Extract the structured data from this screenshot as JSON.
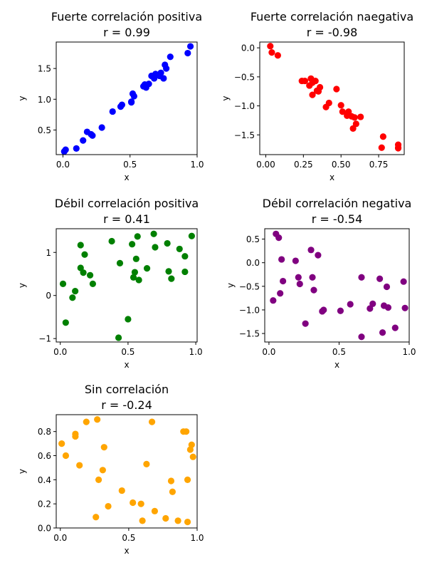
{
  "chart_data": [
    {
      "type": "scatter",
      "title": "Fuerte correlación positiva",
      "subtitle": "r = 0.99",
      "xlabel": "x",
      "ylabel": "y",
      "xlim": [
        -0.05,
        1.0
      ],
      "ylim": [
        0.1,
        1.93
      ],
      "xticks": [
        0.0,
        0.5,
        1.0
      ],
      "xtick_labels": [
        "0.0",
        "0.5",
        "1.0"
      ],
      "yticks": [
        0.5,
        1.0,
        1.5
      ],
      "ytick_labels": [
        "0.5",
        "1.0",
        "1.5"
      ],
      "color": "#0000ff",
      "series": [
        {
          "x": [
            0.01,
            0.02,
            0.1,
            0.15,
            0.18,
            0.21,
            0.22,
            0.29,
            0.37,
            0.43,
            0.44,
            0.51,
            0.51,
            0.52,
            0.53,
            0.6,
            0.61,
            0.62,
            0.64,
            0.66,
            0.68,
            0.69,
            0.72,
            0.73,
            0.75,
            0.76,
            0.77,
            0.8,
            0.93,
            0.95
          ],
          "y": [
            0.15,
            0.18,
            0.2,
            0.33,
            0.47,
            0.43,
            0.41,
            0.54,
            0.8,
            0.88,
            0.91,
            0.96,
            0.95,
            1.09,
            1.05,
            1.21,
            1.24,
            1.19,
            1.25,
            1.38,
            1.34,
            1.41,
            1.38,
            1.43,
            1.34,
            1.56,
            1.5,
            1.69,
            1.75,
            1.86
          ]
        }
      ]
    },
    {
      "type": "scatter",
      "title": "Fuerte correlación naegativa",
      "subtitle": "r = -0.98",
      "xlabel": "x",
      "ylabel": "y",
      "xlim": [
        -0.04,
        0.92
      ],
      "ylim": [
        -1.84,
        0.1
      ],
      "xticks": [
        0.0,
        0.25,
        0.5,
        0.75
      ],
      "xtick_labels": [
        "0.00",
        "0.25",
        "0.50",
        "0.75"
      ],
      "yticks": [
        0.0,
        -0.5,
        -1.0,
        -1.5
      ],
      "ytick_labels": [
        "0.0",
        "−0.5",
        "−1.0",
        "−1.5"
      ],
      "color": "#ff0000",
      "series": [
        {
          "x": [
            0.03,
            0.04,
            0.08,
            0.24,
            0.26,
            0.29,
            0.3,
            0.31,
            0.31,
            0.33,
            0.34,
            0.35,
            0.36,
            0.4,
            0.42,
            0.47,
            0.5,
            0.51,
            0.54,
            0.55,
            0.57,
            0.58,
            0.59,
            0.6,
            0.63,
            0.77,
            0.78,
            0.88,
            0.88,
            0.88
          ],
          "y": [
            0.03,
            -0.08,
            -0.13,
            -0.57,
            -0.57,
            -0.65,
            -0.53,
            -0.6,
            -0.81,
            -0.57,
            -0.74,
            -0.75,
            -0.68,
            -1.02,
            -0.95,
            -0.71,
            -0.99,
            -1.1,
            -1.17,
            -1.1,
            -1.18,
            -1.39,
            -1.2,
            -1.31,
            -1.19,
            -1.72,
            -1.53,
            -1.67,
            -1.72,
            -1.73
          ]
        }
      ]
    },
    {
      "type": "scatter",
      "title": "Débil correlación positiva",
      "subtitle": "r = 0.41",
      "xlabel": "x",
      "ylabel": "y",
      "xlim": [
        -0.03,
        1.01
      ],
      "ylim": [
        -1.08,
        1.55
      ],
      "xticks": [
        0.0,
        0.5,
        1.0
      ],
      "xtick_labels": [
        "0.0",
        "0.5",
        "1.0"
      ],
      "yticks": [
        1,
        0,
        -1
      ],
      "ytick_labels": [
        "1",
        "0",
        "−1"
      ],
      "color": "#008000",
      "series": [
        {
          "x": [
            0.02,
            0.04,
            0.09,
            0.11,
            0.15,
            0.15,
            0.17,
            0.18,
            0.22,
            0.24,
            0.38,
            0.43,
            0.44,
            0.5,
            0.53,
            0.54,
            0.55,
            0.56,
            0.57,
            0.58,
            0.64,
            0.69,
            0.7,
            0.79,
            0.8,
            0.82,
            0.88,
            0.92,
            0.92,
            0.97
          ],
          "y": [
            0.27,
            -0.63,
            -0.05,
            0.1,
            1.17,
            0.64,
            0.53,
            0.95,
            0.47,
            0.27,
            1.26,
            -0.98,
            0.75,
            -0.55,
            1.19,
            0.42,
            0.54,
            0.85,
            1.37,
            0.36,
            0.63,
            1.43,
            1.12,
            1.21,
            0.56,
            0.39,
            1.08,
            0.91,
            0.55,
            1.38
          ]
        }
      ]
    },
    {
      "type": "scatter",
      "title": "Débil correlación negativa",
      "subtitle": "r = -0.54",
      "xlabel": "x",
      "ylabel": "y",
      "xlim": [
        -0.03,
        1.0
      ],
      "ylim": [
        -1.68,
        0.72
      ],
      "xticks": [
        0.0,
        0.5,
        1.0
      ],
      "xtick_labels": [
        "0.0",
        "0.5",
        "1.0"
      ],
      "yticks": [
        0.5,
        0.0,
        -0.5,
        -1.0,
        -1.5
      ],
      "ytick_labels": [
        "0.5",
        "0.0",
        "−0.5",
        "−1.0",
        "−1.5"
      ],
      "color": "#800080",
      "series": [
        {
          "x": [
            0.03,
            0.05,
            0.07,
            0.08,
            0.09,
            0.1,
            0.19,
            0.21,
            0.22,
            0.26,
            0.3,
            0.31,
            0.32,
            0.35,
            0.38,
            0.39,
            0.51,
            0.58,
            0.66,
            0.66,
            0.72,
            0.74,
            0.79,
            0.81,
            0.82,
            0.84,
            0.85,
            0.9,
            0.96,
            0.97
          ],
          "y": [
            -0.8,
            0.61,
            0.53,
            -0.65,
            0.07,
            -0.39,
            0.04,
            -0.31,
            -0.45,
            -1.29,
            0.27,
            -0.31,
            -0.58,
            0.16,
            -1.03,
            -1.0,
            -1.02,
            -0.88,
            -1.57,
            -0.31,
            -0.97,
            -0.87,
            -0.34,
            -1.48,
            -0.91,
            -0.51,
            -0.95,
            -1.38,
            -0.4,
            -0.96
          ]
        }
      ]
    },
    {
      "type": "scatter",
      "title": "Sin correlación",
      "subtitle": "r = -0.24",
      "xlabel": "x",
      "ylabel": "y",
      "xlim": [
        -0.03,
        1.0
      ],
      "ylim": [
        0.0,
        0.94
      ],
      "xticks": [
        0.0,
        0.5,
        1.0
      ],
      "xtick_labels": [
        "0.0",
        "0.5",
        "1.0"
      ],
      "yticks": [
        0.0,
        0.2,
        0.4,
        0.6,
        0.8
      ],
      "ytick_labels": [
        "0.0",
        "0.2",
        "0.4",
        "0.6",
        "0.8"
      ],
      "color": "#ffa500",
      "series": [
        {
          "x": [
            0.01,
            0.04,
            0.11,
            0.11,
            0.14,
            0.19,
            0.26,
            0.27,
            0.28,
            0.31,
            0.32,
            0.35,
            0.45,
            0.53,
            0.59,
            0.6,
            0.63,
            0.67,
            0.69,
            0.77,
            0.81,
            0.82,
            0.86,
            0.9,
            0.92,
            0.93,
            0.93,
            0.95,
            0.96,
            0.97
          ],
          "y": [
            0.7,
            0.6,
            0.76,
            0.78,
            0.52,
            0.88,
            0.09,
            0.9,
            0.4,
            0.48,
            0.67,
            0.18,
            0.31,
            0.21,
            0.2,
            0.06,
            0.53,
            0.88,
            0.14,
            0.08,
            0.39,
            0.3,
            0.06,
            0.8,
            0.8,
            0.4,
            0.05,
            0.65,
            0.69,
            0.59
          ]
        }
      ]
    }
  ]
}
